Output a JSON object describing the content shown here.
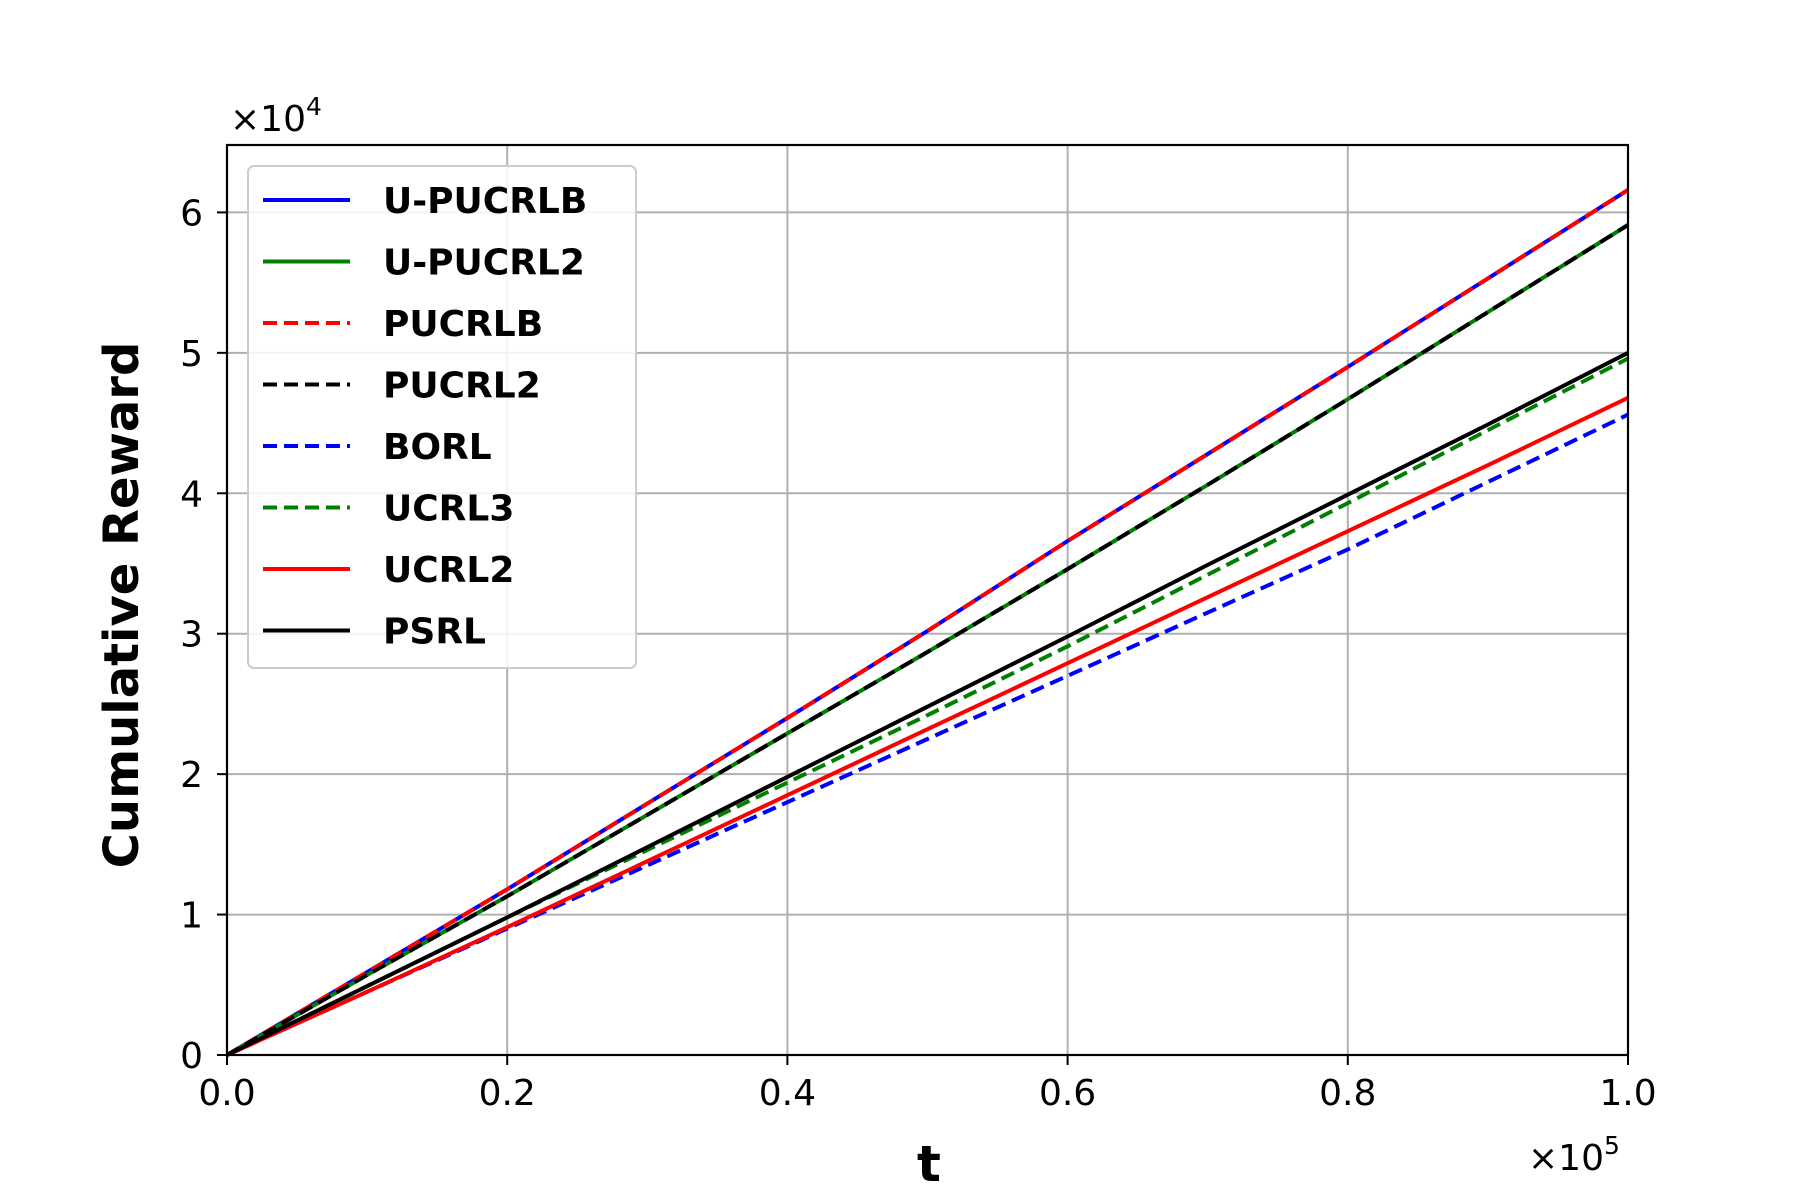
{
  "chart_data": {
    "type": "line",
    "title": "",
    "xlabel": "t",
    "ylabel": "Cumulative Reward",
    "x_multiplier": {
      "base": "×10",
      "exp": "5"
    },
    "y_multiplier": {
      "base": "×10",
      "exp": "4"
    },
    "xlim": [
      0,
      100000
    ],
    "ylim": [
      0,
      64800
    ],
    "x_ticks": [
      0,
      20000,
      40000,
      60000,
      80000,
      100000
    ],
    "x_tick_labels": [
      "0.0",
      "0.2",
      "0.4",
      "0.6",
      "0.8",
      "1.0"
    ],
    "y_ticks": [
      0,
      10000,
      20000,
      30000,
      40000,
      50000,
      60000
    ],
    "y_tick_labels": [
      "0",
      "1",
      "2",
      "3",
      "4",
      "5",
      "6"
    ],
    "grid": true,
    "legend_position": "top-left",
    "x": [
      0,
      10000,
      20000,
      30000,
      40000,
      50000,
      60000,
      70000,
      80000,
      90000,
      100000
    ],
    "series": [
      {
        "name": "U-PUCRLB",
        "color": "#0000ff",
        "dash": "solid",
        "values": [
          0,
          5900,
          11800,
          17900,
          24000,
          30200,
          36600,
          42800,
          49000,
          55300,
          61600
        ]
      },
      {
        "name": "U-PUCRL2",
        "color": "#008000",
        "dash": "solid",
        "values": [
          0,
          5700,
          11300,
          17100,
          22900,
          28700,
          34600,
          40600,
          46700,
          52900,
          59100
        ]
      },
      {
        "name": "PUCRLB",
        "color": "#ff0000",
        "dash": "dashed",
        "values": [
          0,
          5900,
          11800,
          17900,
          24000,
          30200,
          36600,
          42800,
          49000,
          55300,
          61600
        ]
      },
      {
        "name": "PUCRL2",
        "color": "#000000",
        "dash": "dashed",
        "values": [
          0,
          5700,
          11300,
          17100,
          22900,
          28700,
          34600,
          40600,
          46700,
          52900,
          59100
        ]
      },
      {
        "name": "BORL",
        "color": "#0000ff",
        "dash": "dashed",
        "values": [
          0,
          4500,
          9000,
          13500,
          18000,
          22500,
          27000,
          31500,
          36000,
          40800,
          45600
        ]
      },
      {
        "name": "UCRL3",
        "color": "#008000",
        "dash": "dashed",
        "values": [
          0,
          4900,
          9800,
          14600,
          19400,
          24200,
          29100,
          34200,
          39300,
          44500,
          49600
        ]
      },
      {
        "name": "UCRL2",
        "color": "#ff0000",
        "dash": "solid",
        "values": [
          0,
          4500,
          9100,
          13800,
          18500,
          23200,
          27900,
          32600,
          37300,
          42000,
          46800
        ]
      },
      {
        "name": "PSRL",
        "color": "#000000",
        "dash": "solid",
        "values": [
          0,
          4900,
          9800,
          14800,
          19800,
          24800,
          29800,
          34900,
          39900,
          44900,
          50000
        ]
      }
    ]
  }
}
